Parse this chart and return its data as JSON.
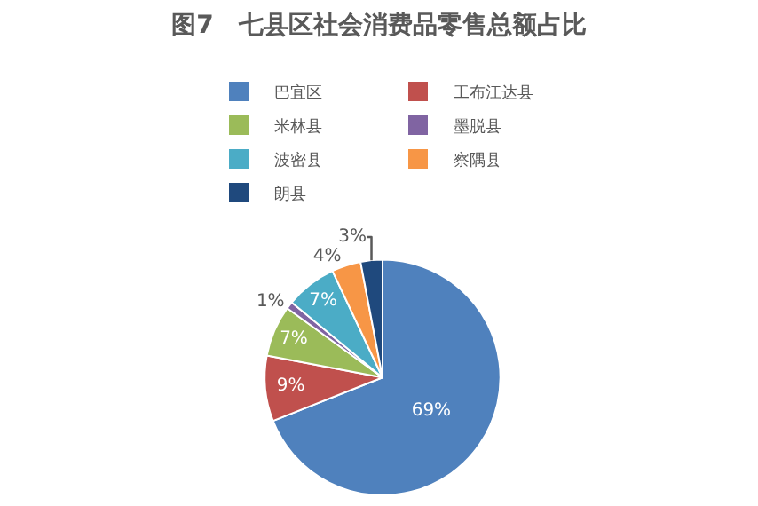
{
  "chart_data": {
    "type": "pie",
    "title": "图7　七县区社会消费品零售总额占比",
    "categories": [
      "巴宜区",
      "工布江达县",
      "米林县",
      "墨脱县",
      "波密县",
      "察隅县",
      "朗县"
    ],
    "values": [
      69,
      9,
      7,
      1,
      7,
      4,
      3
    ],
    "colors": [
      "#4f81bd",
      "#c0504d",
      "#9bbb59",
      "#8064a2",
      "#4bacc6",
      "#f79646",
      "#1f497d"
    ],
    "value_labels": [
      "69%",
      "9%",
      "7%",
      "1%",
      "7%",
      "4%",
      "3%"
    ],
    "legend": "top"
  }
}
